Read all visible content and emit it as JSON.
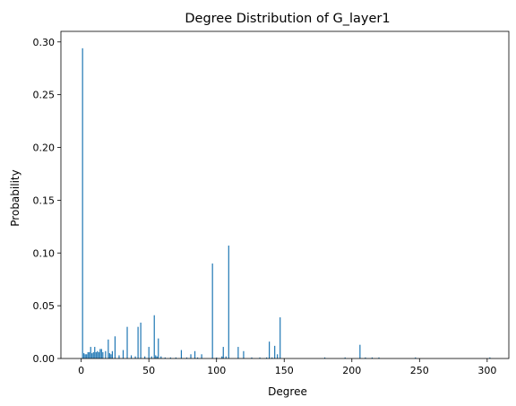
{
  "colors": {
    "bar": "#1f77b4",
    "axis": "#000000",
    "background": "#ffffff"
  },
  "chart_data": {
    "type": "bar",
    "title": "Degree Distribution of G_layer1",
    "xlabel": "Degree",
    "ylabel": "Probability",
    "xlim": [
      -15,
      316
    ],
    "ylim": [
      0,
      0.31
    ],
    "xticks": [
      0,
      50,
      100,
      150,
      200,
      250,
      300
    ],
    "xtick_labels": [
      "0",
      "50",
      "100",
      "150",
      "200",
      "250",
      "300"
    ],
    "yticks": [
      0.0,
      0.05,
      0.1,
      0.15,
      0.2,
      0.25,
      0.3
    ],
    "ytick_labels": [
      "0.00",
      "0.05",
      "0.10",
      "0.15",
      "0.20",
      "0.25",
      "0.30"
    ],
    "grid": false,
    "x": [
      1,
      2,
      3,
      4,
      5,
      6,
      7,
      8,
      9,
      10,
      11,
      12,
      13,
      14,
      15,
      16,
      18,
      20,
      21,
      22,
      23,
      25,
      28,
      31,
      34,
      37,
      40,
      42,
      44,
      47,
      50,
      52,
      54,
      55,
      56,
      57,
      59,
      62,
      66,
      70,
      74,
      78,
      81,
      84,
      86,
      89,
      97,
      100,
      104,
      105,
      107,
      109,
      116,
      120,
      126,
      132,
      137,
      139,
      141,
      143,
      145,
      147,
      180,
      195,
      206,
      210,
      215,
      220,
      247,
      302
    ],
    "values": [
      0.294,
      0.005,
      0.004,
      0.004,
      0.006,
      0.006,
      0.011,
      0.005,
      0.006,
      0.011,
      0.006,
      0.007,
      0.006,
      0.009,
      0.009,
      0.006,
      0.007,
      0.018,
      0.005,
      0.004,
      0.007,
      0.021,
      0.003,
      0.008,
      0.03,
      0.003,
      0.002,
      0.03,
      0.034,
      0.002,
      0.011,
      0.002,
      0.041,
      0.003,
      0.002,
      0.019,
      0.002,
      0.001,
      0.001,
      0.001,
      0.008,
      0.001,
      0.004,
      0.007,
      0.001,
      0.004,
      0.09,
      0.001,
      0.002,
      0.011,
      0.002,
      0.107,
      0.011,
      0.007,
      0.001,
      0.001,
      0.001,
      0.016,
      0.001,
      0.012,
      0.004,
      0.039,
      0.001,
      0.001,
      0.013,
      0.001,
      0.001,
      0.001,
      0.001,
      0.001
    ]
  }
}
